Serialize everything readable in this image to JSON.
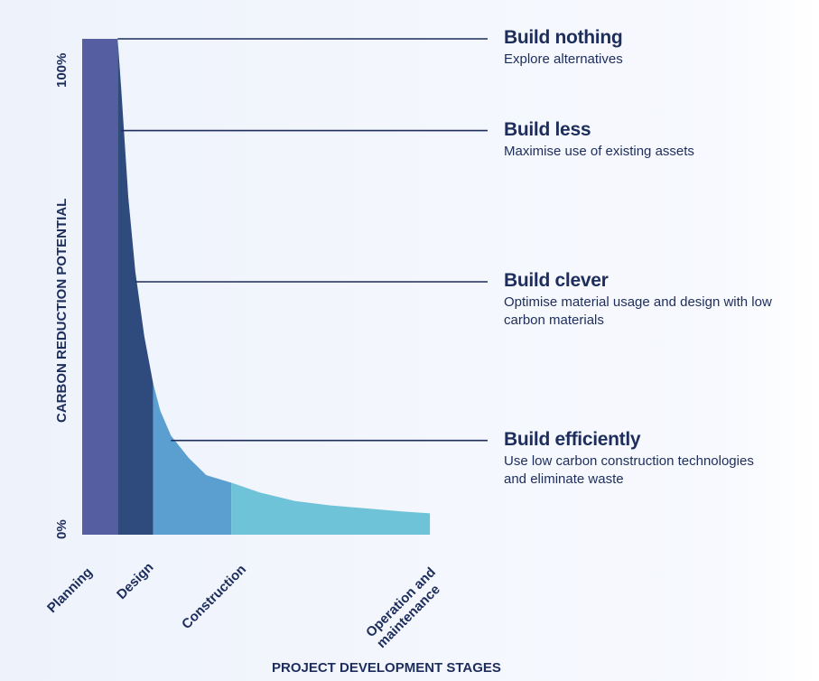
{
  "chart_data": {
    "type": "area",
    "xlabel": "PROJECT DEVELOPMENT STAGES",
    "ylabel": "CARBON REDUCTION POTENTIAL",
    "y_ticks": [
      "100%",
      "0%"
    ],
    "ylim": [
      0,
      100
    ],
    "grid": false,
    "stages": [
      {
        "name": "Planning",
        "color": "#545ea0",
        "x_range": [
          0,
          1
        ]
      },
      {
        "name": "Design",
        "color": "#2f4a7d",
        "x_range": [
          1,
          2
        ]
      },
      {
        "name": "Construction",
        "color": "#5a9fcf",
        "x_range": [
          2,
          4.2
        ]
      },
      {
        "name": "Operation and maintenance",
        "color": "#6ec3d8",
        "x_range": [
          4.2,
          9.8
        ]
      }
    ],
    "curve": {
      "x": [
        0,
        1,
        1.1,
        1.3,
        1.5,
        1.75,
        2.0,
        2.2,
        2.5,
        3.0,
        3.5,
        4.2,
        5,
        6,
        7,
        8,
        9,
        9.8
      ],
      "y": [
        100,
        100,
        90,
        68,
        53,
        40,
        30.5,
        25,
        20,
        15.5,
        12,
        10.5,
        8.5,
        6.8,
        5.9,
        5.3,
        4.7,
        4.3
      ]
    },
    "annotations": [
      {
        "title": "Build nothing",
        "desc": "Explore alternatives",
        "y": 100,
        "line_x": 1.0
      },
      {
        "title": "Build less",
        "desc": "Maximise use of existing assets",
        "y": 81.5,
        "line_x": 1.1
      },
      {
        "title": "Build clever",
        "desc": "Optimise material usage and design with low carbon materials",
        "y": 51,
        "line_x": 1.5
      },
      {
        "title": "Build efficiently",
        "desc": "Use low carbon construction technologies and eliminate waste",
        "y": 19,
        "line_x": 2.5
      }
    ],
    "x_tick_labels": [
      {
        "label": "Planning",
        "x": 0.5
      },
      {
        "label": "Design",
        "x": 1.5
      },
      {
        "label": "Construction",
        "x": 2.8
      },
      {
        "label": "Operation and maintenance",
        "x": 5.4
      }
    ]
  }
}
